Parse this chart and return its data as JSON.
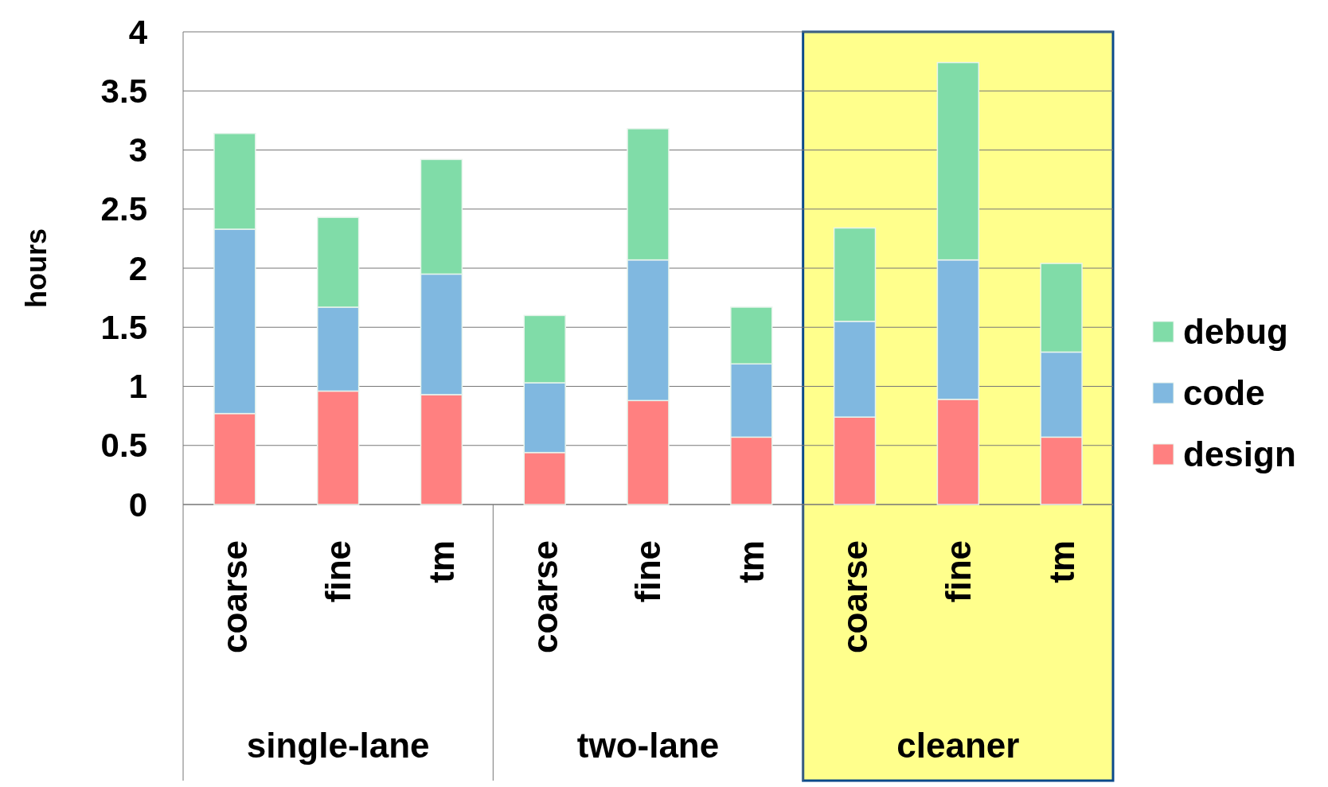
{
  "chart_data": {
    "type": "bar",
    "ylabel": "hours",
    "stacked": true,
    "categories": [
      "coarse",
      "fine",
      "tm",
      "coarse",
      "fine",
      "tm",
      "coarse",
      "fine",
      "tm"
    ],
    "series": [
      {
        "name": "design",
        "color": "#ff8080",
        "values": [
          0.77,
          0.96,
          0.93,
          0.44,
          0.88,
          0.57,
          0.74,
          0.89,
          0.57
        ]
      },
      {
        "name": "code",
        "color": "#80b8e0",
        "values": [
          1.56,
          0.71,
          1.02,
          0.59,
          1.19,
          0.62,
          0.81,
          1.18,
          0.72
        ]
      },
      {
        "name": "debug",
        "color": "#80dca8",
        "values": [
          0.81,
          0.76,
          0.97,
          0.57,
          1.11,
          0.48,
          0.79,
          1.67,
          0.75
        ]
      }
    ],
    "annotations": [
      "single-lane",
      "two-lane",
      "cleaner"
    ],
    "ylim": [
      0,
      4
    ],
    "yticks": [
      0,
      0.5,
      1,
      1.5,
      2,
      2.5,
      3,
      3.5,
      4
    ],
    "grid": "y",
    "legend": "right"
  }
}
